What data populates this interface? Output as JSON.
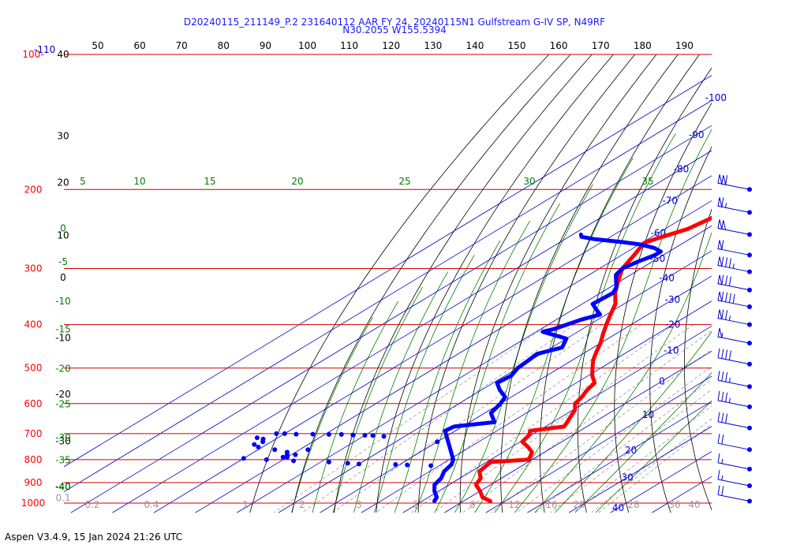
{
  "title_line1": "D20240115_211149_P.2 231640112 AAR FY 24, 20240115N1 Gulfstream G-IV SP, N49RF",
  "title_line2": "N30.2055 W155.5394",
  "footer": "Aspen V3.4.9, 15 Jan 2024  21:26 UTC",
  "colors": {
    "temperature": "#ff0000",
    "dewpoint": "#0000ff",
    "isobar": "#cc0000",
    "isotherm": "#0000cc",
    "dry_adiabat": "#000000",
    "moist_adiabat": "#008000",
    "mixing_ratio": "#999999",
    "pressure_label": "#ff0000"
  },
  "chart_data": {
    "type": "skew-t log-p",
    "pressure_axis": {
      "unit": "hPa",
      "ticks": [
        {
          "p": 100,
          "label": "100-"
        },
        {
          "p": 200,
          "label": "200"
        },
        {
          "p": 300,
          "label": "300"
        },
        {
          "p": 400,
          "label": "400"
        },
        {
          "p": 500,
          "label": "500"
        },
        {
          "p": 600,
          "label": "600"
        },
        {
          "p": 700,
          "label": "700"
        },
        {
          "p": 800,
          "label": "800"
        },
        {
          "p": 900,
          "label": "900"
        },
        {
          "p": 1000,
          "label": "1000"
        }
      ],
      "isobars": [
        100,
        200,
        300,
        400,
        500,
        600,
        700,
        800,
        900,
        1000
      ]
    },
    "top_scale_ticks": [
      "50",
      "60",
      "70",
      "80",
      "90",
      "100",
      "110",
      "120",
      "130",
      "140",
      "150",
      "160",
      "170",
      "180",
      "190"
    ],
    "top_scale_range_label": "-110",
    "temperature_axis": {
      "unit": "C",
      "isotherms": [
        -110,
        -100,
        -90,
        -80,
        -70,
        -60,
        -50,
        -40,
        -30,
        -20,
        -10,
        0,
        10,
        20,
        30,
        40,
        50
      ],
      "labels": [
        {
          "t": -100,
          "p": 125,
          "label": "-100"
        },
        {
          "t": -90,
          "p": 151,
          "label": "-90"
        },
        {
          "t": -80,
          "p": 180,
          "label": "-80"
        },
        {
          "t": -70,
          "p": 212,
          "label": "-70"
        },
        {
          "t": -60,
          "p": 250,
          "label": "-60"
        },
        {
          "t": -50,
          "p": 285,
          "label": "-50"
        },
        {
          "t": -40,
          "p": 315,
          "label": "-40"
        },
        {
          "t": -30,
          "p": 352,
          "label": "-30"
        },
        {
          "t": -20,
          "p": 400,
          "label": "-20"
        },
        {
          "t": -10,
          "p": 457,
          "label": "-10"
        },
        {
          "t": 0,
          "p": 535,
          "label": "0"
        },
        {
          "t": 10,
          "p": 635,
          "label": "10"
        },
        {
          "t": 20,
          "p": 762,
          "label": "20"
        },
        {
          "t": 30,
          "p": 876,
          "label": "30"
        },
        {
          "t": 40,
          "p": 1025,
          "label": "40"
        }
      ]
    },
    "dry_adiabats_theta_c": [
      -50,
      -40,
      -30,
      -20,
      -10,
      0,
      10,
      20,
      30,
      40,
      50,
      60,
      70,
      80,
      90,
      100,
      110,
      120,
      130,
      140,
      150,
      160,
      170,
      180
    ],
    "moist_adiabats_thetaw_c": [
      -40,
      -35,
      -30,
      -25,
      -20,
      -15,
      -10,
      -5,
      0,
      5,
      10,
      15,
      20,
      25,
      30,
      35
    ],
    "mixing_ratio_g_kg": [
      0.1,
      0.2,
      0.4,
      1,
      2,
      3,
      5,
      8,
      12,
      16,
      20,
      28,
      36,
      40
    ],
    "left_labels": [
      {
        "p": 100,
        "label": "40",
        "color": "#000000"
      },
      {
        "p": 152,
        "label": "30",
        "color": "#000000"
      },
      {
        "p": 193,
        "label": "20",
        "color": "#000000"
      },
      {
        "p": 253,
        "label": "10",
        "color": "#000000"
      },
      {
        "p": 314,
        "label": "0",
        "color": "#000000"
      },
      {
        "p": 428,
        "label": "-10",
        "color": "#000000"
      },
      {
        "p": 572,
        "label": "-20",
        "color": "#000000"
      },
      {
        "p": 728,
        "label": "-30",
        "color": "#000000"
      },
      {
        "p": 918,
        "label": "-40",
        "color": "#000000"
      },
      {
        "p": 244,
        "label": "0",
        "color": "#008000"
      },
      {
        "p": 290,
        "label": "-5",
        "color": "#008000"
      },
      {
        "p": 355,
        "label": "-10",
        "color": "#008000"
      },
      {
        "p": 410,
        "label": "-15",
        "color": "#008000"
      },
      {
        "p": 502,
        "label": "-20",
        "color": "#008000"
      },
      {
        "p": 602,
        "label": "-25",
        "color": "#008000"
      },
      {
        "p": 715,
        "label": "-30",
        "color": "#008000"
      },
      {
        "p": 802,
        "label": "-35",
        "color": "#008000"
      },
      {
        "p": 920,
        "label": "-40",
        "color": "#008000"
      },
      {
        "p": 975,
        "label": "0.1",
        "color": "#999999"
      }
    ],
    "moist_labels_200hPa": [
      "5",
      "10",
      "15",
      "20",
      "25",
      "30",
      "35"
    ],
    "mixing_ratio_labels": [
      "0.2",
      "0.4",
      "1",
      "2",
      "3",
      "5",
      "8",
      "12",
      "16",
      "20",
      "28",
      "36",
      "40"
    ],
    "temperature_profile": [
      {
        "p": 200,
        "t": -51.5
      },
      {
        "p": 215,
        "t": -53
      },
      {
        "p": 230,
        "t": -53
      },
      {
        "p": 245,
        "t": -54.5
      },
      {
        "p": 255,
        "t": -57.5
      },
      {
        "p": 263,
        "t": -59.5
      },
      {
        "p": 280,
        "t": -57
      },
      {
        "p": 300,
        "t": -54.5
      },
      {
        "p": 320,
        "t": -50.5
      },
      {
        "p": 340,
        "t": -46.5
      },
      {
        "p": 360,
        "t": -42
      },
      {
        "p": 380,
        "t": -39
      },
      {
        "p": 400,
        "t": -36
      },
      {
        "p": 420,
        "t": -33
      },
      {
        "p": 440,
        "t": -30
      },
      {
        "p": 460,
        "t": -27.5
      },
      {
        "p": 480,
        "t": -25
      },
      {
        "p": 500,
        "t": -22
      },
      {
        "p": 520,
        "t": -19
      },
      {
        "p": 540,
        "t": -15.5
      },
      {
        "p": 560,
        "t": -14.5
      },
      {
        "p": 580,
        "t": -13
      },
      {
        "p": 600,
        "t": -12
      },
      {
        "p": 620,
        "t": -9.5
      },
      {
        "p": 640,
        "t": -8
      },
      {
        "p": 660,
        "t": -6.5
      },
      {
        "p": 675,
        "t": -5.5
      },
      {
        "p": 690,
        "t": -12
      },
      {
        "p": 705,
        "t": -10.5
      },
      {
        "p": 730,
        "t": -9.5
      },
      {
        "p": 750,
        "t": -6
      },
      {
        "p": 770,
        "t": -3
      },
      {
        "p": 790,
        "t": -1.5
      },
      {
        "p": 800,
        "t": -1
      },
      {
        "p": 810,
        "t": -9
      },
      {
        "p": 850,
        "t": -8
      },
      {
        "p": 880,
        "t": -5
      },
      {
        "p": 910,
        "t": -3.5
      },
      {
        "p": 940,
        "t": 0
      },
      {
        "p": 970,
        "t": 3
      },
      {
        "p": 990,
        "t": 6.5
      }
    ],
    "dewpoint_profile": [
      {
        "p": 252,
        "td": -78
      },
      {
        "p": 255,
        "td": -77
      },
      {
        "p": 258,
        "td": -73
      },
      {
        "p": 260,
        "td": -69
      },
      {
        "p": 262,
        "td": -65
      },
      {
        "p": 265,
        "td": -60
      },
      {
        "p": 270,
        "td": -55
      },
      {
        "p": 275,
        "td": -52
      },
      {
        "p": 280,
        "td": -52
      },
      {
        "p": 290,
        "td": -53.5
      },
      {
        "p": 300,
        "td": -54.5
      },
      {
        "p": 310,
        "td": -53.5
      },
      {
        "p": 320,
        "td": -51
      },
      {
        "p": 330,
        "td": -48.5
      },
      {
        "p": 340,
        "td": -47
      },
      {
        "p": 360,
        "td": -47.5
      },
      {
        "p": 370,
        "td": -44.5
      },
      {
        "p": 380,
        "td": -41.5
      },
      {
        "p": 390,
        "td": -44
      },
      {
        "p": 400,
        "td": -45.5
      },
      {
        "p": 410,
        "td": -47
      },
      {
        "p": 415,
        "td": -48.5
      },
      {
        "p": 430,
        "td": -40
      },
      {
        "p": 450,
        "td": -37.5
      },
      {
        "p": 465,
        "td": -41
      },
      {
        "p": 480,
        "td": -40.5
      },
      {
        "p": 500,
        "td": -40
      },
      {
        "p": 520,
        "td": -38.5
      },
      {
        "p": 540,
        "td": -39
      },
      {
        "p": 560,
        "td": -35.5
      },
      {
        "p": 580,
        "td": -31.5
      },
      {
        "p": 600,
        "td": -30
      },
      {
        "p": 630,
        "td": -28.5
      },
      {
        "p": 660,
        "td": -24
      },
      {
        "p": 675,
        "td": -32
      },
      {
        "p": 690,
        "td": -32.5
      },
      {
        "p": 800,
        "td": -19
      },
      {
        "p": 820,
        "td": -17.5
      },
      {
        "p": 850,
        "td": -16.5
      },
      {
        "p": 880,
        "td": -14.5
      },
      {
        "p": 910,
        "td": -13.5
      },
      {
        "p": 940,
        "td": -11
      },
      {
        "p": 970,
        "td": -8
      },
      {
        "p": 990,
        "td": -7
      }
    ],
    "dewpoint_scatter": [
      {
        "p": 700,
        "td": -72
      },
      {
        "p": 700,
        "td": -70
      },
      {
        "p": 702,
        "td": -67
      },
      {
        "p": 702,
        "td": -63
      },
      {
        "p": 703,
        "td": -59
      },
      {
        "p": 703,
        "td": -56
      },
      {
        "p": 705,
        "td": -53
      },
      {
        "p": 706,
        "td": -50
      },
      {
        "p": 707,
        "td": -48
      },
      {
        "p": 710,
        "td": -45
      },
      {
        "p": 715,
        "td": -75
      },
      {
        "p": 720,
        "td": -73
      },
      {
        "p": 730,
        "td": -72
      },
      {
        "p": 740,
        "td": -73
      },
      {
        "p": 750,
        "td": -71
      },
      {
        "p": 760,
        "td": -66
      },
      {
        "p": 770,
        "td": -62
      },
      {
        "p": 780,
        "td": -61
      },
      {
        "p": 790,
        "td": -60
      },
      {
        "p": 795,
        "td": -70
      },
      {
        "p": 800,
        "td": -64
      },
      {
        "p": 805,
        "td": -57
      },
      {
        "p": 810,
        "td": -48
      },
      {
        "p": 815,
        "td": -43
      },
      {
        "p": 818,
        "td": -40
      },
      {
        "p": 820,
        "td": -31
      },
      {
        "p": 822,
        "td": -28
      },
      {
        "p": 825,
        "td": -22
      },
      {
        "p": 730,
        "td": -30
      },
      {
        "p": 760,
        "td": -58
      },
      {
        "p": 780,
        "td": -59
      },
      {
        "p": 790,
        "td": -61
      }
    ],
    "wind_barbs": [
      {
        "p": 200,
        "kt": 110
      },
      {
        "p": 225,
        "kt": 65
      },
      {
        "p": 252,
        "kt": 100
      },
      {
        "p": 280,
        "kt": 60
      },
      {
        "p": 305,
        "kt": 85
      },
      {
        "p": 335,
        "kt": 80
      },
      {
        "p": 365,
        "kt": 90
      },
      {
        "p": 400,
        "kt": 75
      },
      {
        "p": 440,
        "kt": 55
      },
      {
        "p": 490,
        "kt": 40
      },
      {
        "p": 550,
        "kt": 35
      },
      {
        "p": 610,
        "kt": 35
      },
      {
        "p": 680,
        "kt": 30
      },
      {
        "p": 760,
        "kt": 20
      },
      {
        "p": 840,
        "kt": 15
      },
      {
        "p": 915,
        "kt": 15
      },
      {
        "p": 990,
        "kt": 20
      }
    ]
  }
}
